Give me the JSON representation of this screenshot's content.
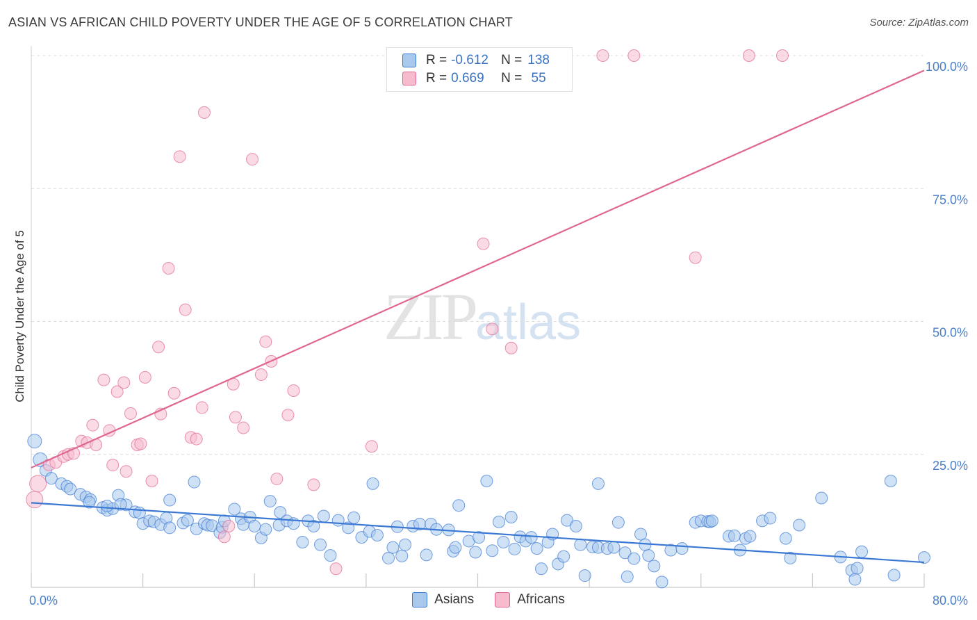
{
  "header": {
    "title": "ASIAN VS AFRICAN CHILD POVERTY UNDER THE AGE OF 5 CORRELATION CHART",
    "source": "Source: ZipAtlas.com"
  },
  "watermark": {
    "zip": "ZIP",
    "atlas": "atlas"
  },
  "legend": {
    "rows": [
      {
        "r_label": "R =",
        "r_value": "-0.612",
        "n_label": "N =",
        "n_value": "138",
        "color": "#a8c8ec"
      },
      {
        "r_label": "R =",
        "r_value": "0.669",
        "n_label": "N =",
        "n_value": "55",
        "color": "#f6bccd"
      }
    ]
  },
  "bottom_legend": {
    "asians": "Asians",
    "africans": "Africans"
  },
  "chart_data": {
    "type": "scatter",
    "title": "ASIAN VS AFRICAN CHILD POVERTY UNDER THE AGE OF 5 CORRELATION CHART",
    "xlabel": "",
    "ylabel": "Child Poverty Under the Age of 5",
    "xlim": [
      0,
      80
    ],
    "ylim": [
      0,
      100
    ],
    "x_tick_labels": [
      "0.0%",
      "80.0%"
    ],
    "y_tick_labels": [
      "25.0%",
      "50.0%",
      "75.0%",
      "100.0%"
    ],
    "y_ticks": [
      25,
      50,
      75,
      100
    ],
    "grid": true,
    "legend_position": "top-center",
    "colors": {
      "asians": "#3a78d4",
      "africans": "#e06690",
      "asians_fill": "#a8c8ec",
      "africans_fill": "#f6bccd"
    },
    "series": [
      {
        "name": "Asians",
        "r": -0.612,
        "n": 138,
        "trend": [
          [
            0,
            15.9
          ],
          [
            80,
            4.7
          ]
        ],
        "points": [
          [
            0.3,
            27.5
          ],
          [
            0.8,
            24.0
          ],
          [
            1.3,
            22.0
          ],
          [
            1.8,
            20.5
          ],
          [
            2.7,
            19.5
          ],
          [
            3.2,
            19.0
          ],
          [
            3.5,
            18.5
          ],
          [
            4.4,
            17.5
          ],
          [
            4.9,
            17.0
          ],
          [
            5.3,
            16.5
          ],
          [
            5.2,
            16.0
          ],
          [
            6.4,
            15.0
          ],
          [
            6.8,
            14.5
          ],
          [
            7.3,
            14.8
          ],
          [
            6.8,
            15.3
          ],
          [
            7.8,
            17.3
          ],
          [
            8.5,
            15.5
          ],
          [
            8.0,
            15.6
          ],
          [
            9.3,
            14.2
          ],
          [
            9.7,
            14.0
          ],
          [
            10.0,
            12.0
          ],
          [
            10.6,
            12.5
          ],
          [
            11.0,
            12.3
          ],
          [
            11.6,
            11.8
          ],
          [
            12.1,
            13.0
          ],
          [
            12.4,
            16.4
          ],
          [
            12.4,
            11.2
          ],
          [
            13.6,
            12.1
          ],
          [
            14.0,
            12.6
          ],
          [
            14.6,
            19.8
          ],
          [
            14.8,
            11.0
          ],
          [
            15.5,
            12.0
          ],
          [
            15.8,
            11.7
          ],
          [
            16.2,
            11.6
          ],
          [
            16.9,
            10.3
          ],
          [
            17.1,
            11.3
          ],
          [
            17.3,
            12.5
          ],
          [
            18.2,
            14.7
          ],
          [
            18.8,
            12.9
          ],
          [
            19.0,
            11.8
          ],
          [
            19.6,
            13.2
          ],
          [
            20.0,
            11.5
          ],
          [
            20.6,
            9.3
          ],
          [
            21.0,
            10.9
          ],
          [
            21.4,
            16.2
          ],
          [
            22.2,
            11.7
          ],
          [
            22.3,
            14.1
          ],
          [
            22.9,
            12.5
          ],
          [
            23.5,
            12.0
          ],
          [
            24.3,
            8.5
          ],
          [
            24.8,
            12.5
          ],
          [
            25.3,
            11.5
          ],
          [
            25.9,
            8.0
          ],
          [
            26.2,
            13.4
          ],
          [
            26.8,
            6.0
          ],
          [
            27.5,
            12.6
          ],
          [
            28.4,
            11.2
          ],
          [
            28.9,
            13.1
          ],
          [
            29.6,
            9.4
          ],
          [
            30.3,
            10.5
          ],
          [
            30.6,
            19.5
          ],
          [
            31.0,
            9.8
          ],
          [
            32.0,
            5.5
          ],
          [
            32.4,
            7.5
          ],
          [
            32.8,
            11.4
          ],
          [
            33.2,
            5.9
          ],
          [
            33.5,
            8.0
          ],
          [
            34.2,
            11.5
          ],
          [
            34.8,
            11.9
          ],
          [
            35.4,
            6.1
          ],
          [
            35.8,
            11.9
          ],
          [
            36.3,
            10.9
          ],
          [
            37.4,
            10.8
          ],
          [
            37.8,
            6.8
          ],
          [
            38.0,
            7.5
          ],
          [
            38.3,
            15.4
          ],
          [
            39.2,
            8.7
          ],
          [
            39.8,
            6.6
          ],
          [
            40.1,
            9.4
          ],
          [
            40.8,
            20.0
          ],
          [
            41.3,
            6.9
          ],
          [
            41.9,
            12.3
          ],
          [
            42.3,
            8.5
          ],
          [
            43.0,
            13.2
          ],
          [
            43.3,
            7.2
          ],
          [
            43.8,
            9.5
          ],
          [
            44.3,
            8.7
          ],
          [
            44.8,
            9.4
          ],
          [
            45.3,
            7.3
          ],
          [
            45.7,
            3.5
          ],
          [
            46.3,
            8.5
          ],
          [
            46.7,
            10.0
          ],
          [
            47.2,
            4.4
          ],
          [
            47.7,
            5.8
          ],
          [
            48.0,
            12.6
          ],
          [
            48.8,
            11.5
          ],
          [
            49.2,
            8.0
          ],
          [
            49.6,
            2.2
          ],
          [
            50.3,
            7.6
          ],
          [
            50.8,
            19.5
          ],
          [
            50.8,
            7.5
          ],
          [
            51.6,
            7.3
          ],
          [
            52.2,
            7.5
          ],
          [
            52.6,
            12.2
          ],
          [
            53.2,
            6.5
          ],
          [
            53.4,
            2.0
          ],
          [
            54.0,
            5.4
          ],
          [
            54.6,
            10.0
          ],
          [
            55.0,
            8.0
          ],
          [
            55.3,
            6.0
          ],
          [
            55.8,
            4.0
          ],
          [
            56.5,
            1.0
          ],
          [
            57.3,
            7.0
          ],
          [
            58.3,
            7.3
          ],
          [
            59.5,
            12.2
          ],
          [
            60.0,
            12.5
          ],
          [
            60.6,
            12.4
          ],
          [
            60.8,
            12.3
          ],
          [
            61.0,
            12.5
          ],
          [
            62.5,
            9.6
          ],
          [
            63.0,
            9.7
          ],
          [
            63.5,
            7.0
          ],
          [
            64.0,
            9.2
          ],
          [
            64.4,
            9.6
          ],
          [
            65.5,
            12.5
          ],
          [
            66.2,
            13.0
          ],
          [
            67.6,
            9.2
          ],
          [
            68.0,
            5.5
          ],
          [
            68.8,
            11.7
          ],
          [
            70.8,
            16.8
          ],
          [
            72.5,
            5.7
          ],
          [
            73.5,
            3.2
          ],
          [
            73.8,
            1.5
          ],
          [
            74.0,
            3.6
          ],
          [
            74.4,
            6.7
          ],
          [
            77.0,
            20.0
          ],
          [
            77.3,
            2.3
          ],
          [
            80.0,
            5.6
          ]
        ]
      },
      {
        "name": "Africans",
        "r": 0.669,
        "n": 55,
        "trend": [
          [
            0,
            22.5
          ],
          [
            80,
            97.2
          ]
        ],
        "points": [
          [
            0.3,
            16.5
          ],
          [
            0.6,
            19.5
          ],
          [
            1.6,
            23.0
          ],
          [
            2.2,
            23.5
          ],
          [
            2.9,
            24.6
          ],
          [
            3.3,
            25.0
          ],
          [
            3.8,
            25.2
          ],
          [
            4.5,
            27.5
          ],
          [
            5.0,
            27.2
          ],
          [
            5.5,
            30.5
          ],
          [
            5.8,
            26.8
          ],
          [
            6.5,
            39.0
          ],
          [
            7.0,
            29.5
          ],
          [
            7.3,
            23.0
          ],
          [
            7.7,
            36.8
          ],
          [
            8.3,
            38.5
          ],
          [
            8.5,
            21.8
          ],
          [
            8.9,
            32.7
          ],
          [
            9.5,
            26.8
          ],
          [
            9.8,
            27.0
          ],
          [
            10.2,
            39.5
          ],
          [
            10.8,
            20.0
          ],
          [
            11.4,
            45.2
          ],
          [
            11.6,
            32.6
          ],
          [
            12.3,
            60.0
          ],
          [
            12.8,
            36.5
          ],
          [
            13.3,
            81.0
          ],
          [
            13.8,
            52.2
          ],
          [
            14.3,
            28.2
          ],
          [
            14.8,
            27.9
          ],
          [
            15.3,
            33.8
          ],
          [
            15.5,
            89.3
          ],
          [
            17.3,
            9.5
          ],
          [
            17.7,
            11.5
          ],
          [
            18.1,
            38.2
          ],
          [
            18.3,
            32.0
          ],
          [
            19.0,
            30.0
          ],
          [
            19.8,
            80.5
          ],
          [
            20.6,
            40.0
          ],
          [
            21.0,
            46.2
          ],
          [
            21.5,
            42.5
          ],
          [
            22.0,
            20.4
          ],
          [
            23.0,
            32.4
          ],
          [
            23.5,
            37.0
          ],
          [
            25.3,
            19.3
          ],
          [
            27.3,
            3.5
          ],
          [
            30.5,
            26.5
          ],
          [
            40.5,
            64.6
          ],
          [
            41.3,
            48.6
          ],
          [
            43.0,
            45.0
          ],
          [
            51.2,
            100.0
          ],
          [
            54.0,
            100.0
          ],
          [
            59.5,
            62.0
          ],
          [
            64.3,
            100.0
          ],
          [
            67.3,
            100.0
          ]
        ]
      }
    ]
  }
}
